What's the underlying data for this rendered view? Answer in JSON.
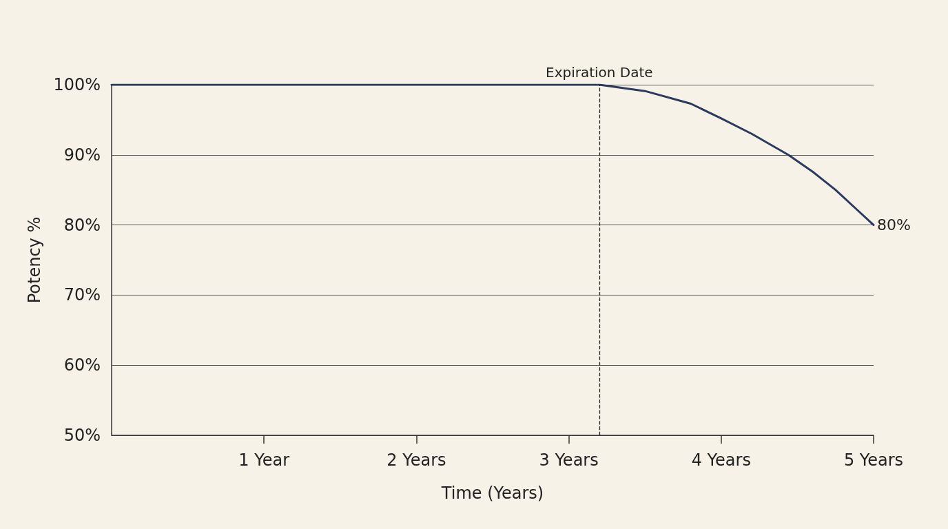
{
  "chart_data": {
    "type": "line",
    "xlabel": "Time (Years)",
    "ylabel": "Potency %",
    "x": [
      0,
      1,
      2,
      3,
      3.2,
      3.5,
      3.8,
      4,
      4.2,
      4.44,
      4.6,
      4.75,
      4.9,
      5
    ],
    "series": [
      {
        "color": "#2b3a5e",
        "values": [
          100,
          100,
          100,
          100,
          100,
          99.1,
          97.3,
          95.2,
          93,
          90,
          87.6,
          85,
          82,
          80
        ],
        "value_labels": [
          null,
          null,
          null,
          null,
          null,
          null,
          null,
          null,
          null,
          null,
          null,
          null,
          null,
          "80%"
        ]
      }
    ],
    "xlim": [
      0,
      5
    ],
    "xticks": [
      {
        "value": 1,
        "label": "1 Year"
      },
      {
        "value": 2,
        "label": "2 Years"
      },
      {
        "value": 3,
        "label": "3 Years"
      },
      {
        "value": 4,
        "label": "4 Years"
      },
      {
        "value": 5,
        "label": "5 Years"
      }
    ],
    "ylim": [
      50,
      100
    ],
    "yticks": [
      {
        "value": 50,
        "label": "50%"
      },
      {
        "value": 60,
        "label": "60%"
      },
      {
        "value": 70,
        "label": "70%"
      },
      {
        "value": 80,
        "label": "80%"
      },
      {
        "value": 90,
        "label": "90%"
      },
      {
        "value": 100,
        "label": "100%"
      }
    ],
    "ref_lines": [
      {
        "axis": "x",
        "value": 3.2,
        "label": "Expiration Date",
        "color": "#222222",
        "line_style": "dashed"
      }
    ],
    "grid": "y",
    "marker": "none",
    "line_style": "solid"
  }
}
